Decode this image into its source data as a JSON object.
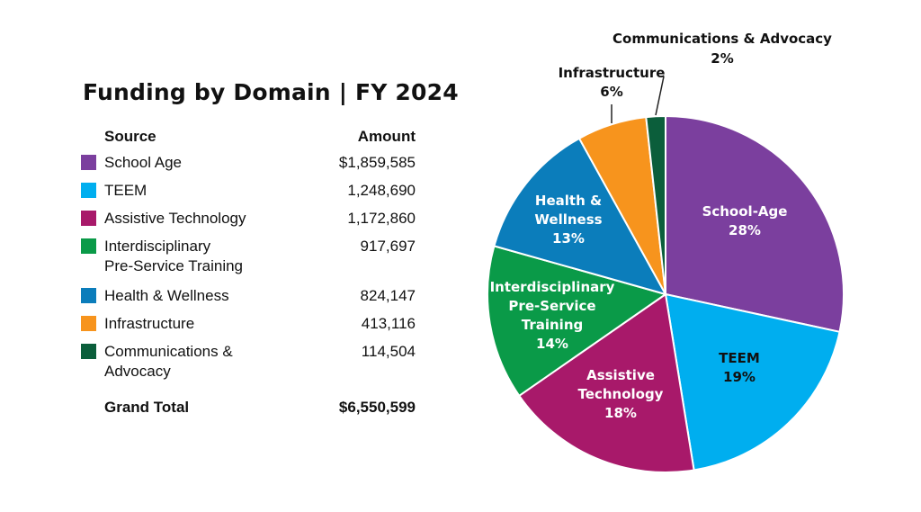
{
  "title": "Funding by Domain | FY 2024",
  "table": {
    "header_source": "Source",
    "header_amount": "Amount",
    "rows": [
      {
        "lines": [
          "School Age"
        ],
        "amount": "$1,859,585",
        "color": "#7b3f9e"
      },
      {
        "lines": [
          "TEEM"
        ],
        "amount": "1,248,690",
        "color": "#00aeef"
      },
      {
        "lines": [
          "Assistive Technology"
        ],
        "amount": "1,172,860",
        "color": "#a8196a"
      },
      {
        "lines": [
          "Interdisciplinary",
          "Pre-Service Training"
        ],
        "amount": "917,697",
        "color": "#0a9a48"
      },
      {
        "lines": [
          "Health & Wellness"
        ],
        "amount": "824,147",
        "color": "#0b7dbb"
      },
      {
        "lines": [
          "Infrastructure"
        ],
        "amount": "413,116",
        "color": "#f7941d"
      },
      {
        "lines": [
          "Communications &",
          "Advocacy"
        ],
        "amount": "114,504",
        "color": "#0b5e3b"
      }
    ],
    "total_label": "Grand Total",
    "total_amount": "$6,550,599"
  },
  "chart_data": {
    "type": "pie",
    "categories": [
      "School-Age",
      "TEEM",
      "Assistive Technology",
      "Interdisciplinary Pre-Service Training",
      "Health & Wellness",
      "Infrastructure",
      "Communications & Advocacy"
    ],
    "values": [
      1859585,
      1248690,
      1172860,
      917697,
      824147,
      413116,
      114504
    ],
    "slices": [
      {
        "label_lines": [
          "School-Age"
        ],
        "pct": "28%",
        "color": "#7b3f9e",
        "label_color": "#ffffff"
      },
      {
        "label_lines": [
          "TEEM"
        ],
        "pct": "19%",
        "color": "#00aeef",
        "label_color": "#111111"
      },
      {
        "label_lines": [
          "Assistive",
          "Technology"
        ],
        "pct": "18%",
        "color": "#a8196a",
        "label_color": "#ffffff"
      },
      {
        "label_lines": [
          "Interdisciplinary",
          "Pre-Service",
          "Training"
        ],
        "pct": "14%",
        "color": "#0a9a48",
        "label_color": "#ffffff"
      },
      {
        "label_lines": [
          "Health &",
          "Wellness"
        ],
        "pct": "13%",
        "color": "#0b7dbb",
        "label_color": "#ffffff"
      },
      {
        "label_lines": [
          "Infrastructure"
        ],
        "pct": "6%",
        "color": "#f7941d",
        "label_color": "#111111"
      },
      {
        "label_lines": [
          "Communications & Advocacy"
        ],
        "pct": "2%",
        "color": "#0b5e3b",
        "label_color": "#111111"
      }
    ],
    "start_angle_deg": 0,
    "direction": "clockwise"
  }
}
